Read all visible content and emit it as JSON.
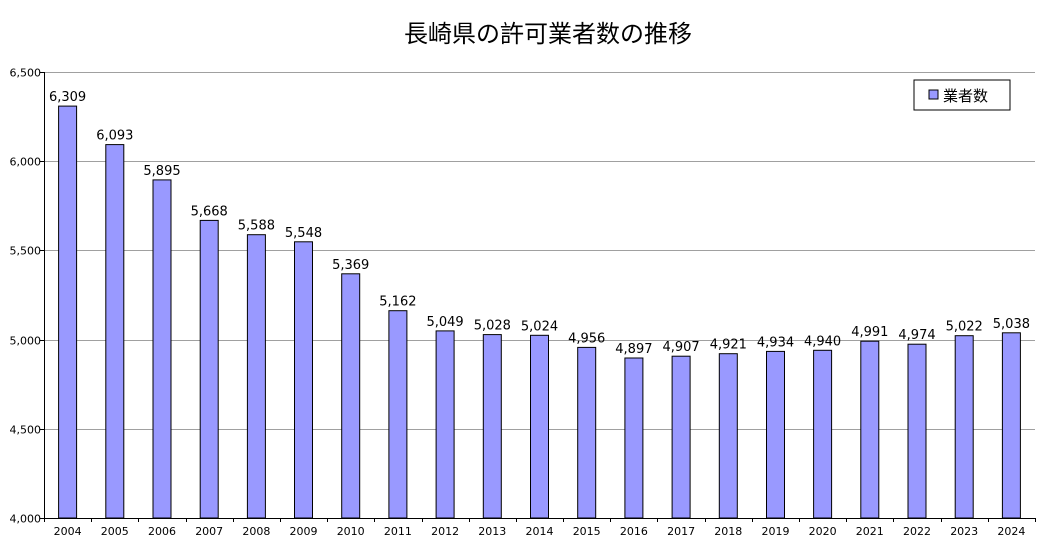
{
  "chart_data": {
    "type": "bar",
    "title": "長崎県の許可業者数の推移",
    "xlabel": "",
    "ylabel": "",
    "categories": [
      "2004",
      "2005",
      "2006",
      "2007",
      "2008",
      "2009",
      "2010",
      "2011",
      "2012",
      "2013",
      "2014",
      "2015",
      "2016",
      "2017",
      "2018",
      "2019",
      "2020",
      "2021",
      "2022",
      "2023",
      "2024"
    ],
    "series": [
      {
        "name": "業者数",
        "values": [
          6309,
          6093,
          5895,
          5668,
          5588,
          5548,
          5369,
          5162,
          5049,
          5028,
          5024,
          4956,
          4897,
          4907,
          4921,
          4934,
          4940,
          4991,
          4974,
          5022,
          5038
        ],
        "labels": [
          "6,309",
          "6,093",
          "5,895",
          "5,668",
          "5,588",
          "5,548",
          "5,369",
          "5,162",
          "5,049",
          "5,028",
          "5,024",
          "4,956",
          "4,897",
          "4,907",
          "4,921",
          "4,934",
          "4,940",
          "4,991",
          "4,974",
          "5,022",
          "5,038"
        ]
      }
    ],
    "ylim": [
      4000,
      6500
    ],
    "yticks": [
      4000,
      4500,
      5000,
      5500,
      6000,
      6500
    ],
    "ytick_labels": [
      "4,000",
      "4,500",
      "5,000",
      "5,500",
      "6,000",
      "6,500"
    ],
    "grid": true,
    "legend": "top-right",
    "colors": {
      "bar": "#9999ff",
      "bar_border": "#000000",
      "grid": "#a0a0a0",
      "axis": "#000000"
    }
  }
}
